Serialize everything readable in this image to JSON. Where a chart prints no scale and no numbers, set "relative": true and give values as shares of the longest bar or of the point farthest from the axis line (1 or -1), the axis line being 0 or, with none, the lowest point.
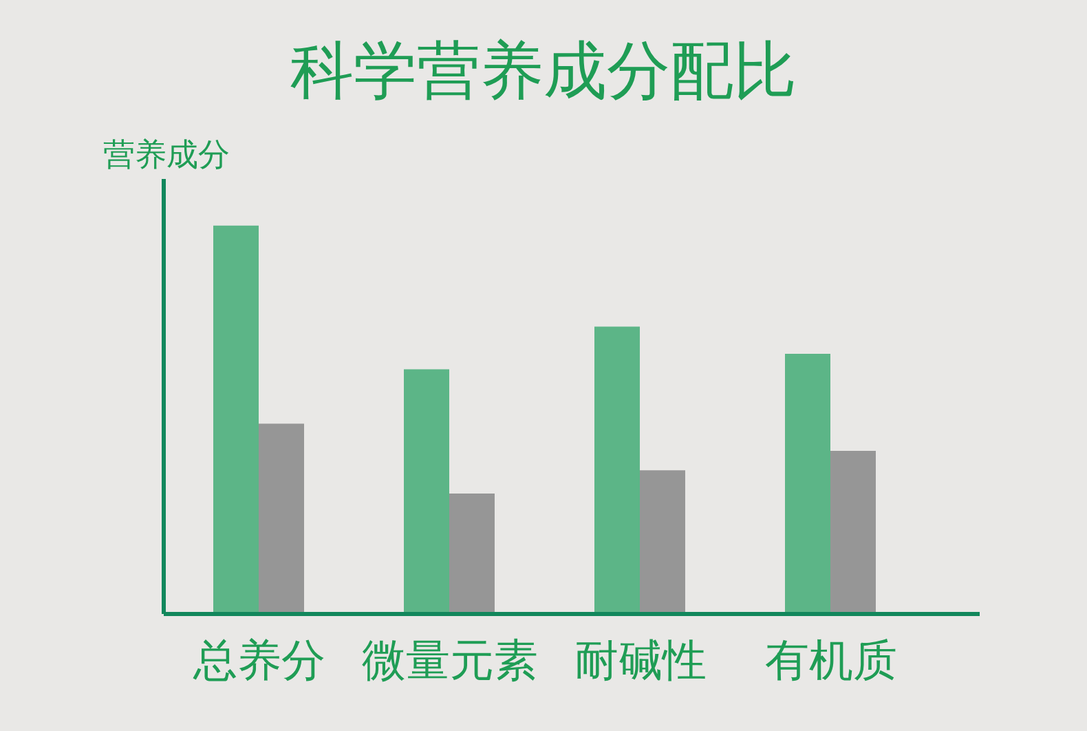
{
  "chart_data": {
    "type": "bar",
    "title": "科学营养成分配比",
    "ylabel": "营养成分",
    "categories": [
      "总养分",
      "微量元素",
      "耐碱性",
      "有机质"
    ],
    "series": [
      {
        "color": "#5cb587",
        "values": [
          1,
          0.63,
          0.74,
          0.67
        ]
      },
      {
        "color": "#969696",
        "values": [
          0.49,
          0.31,
          0.37,
          0.42
        ]
      }
    ],
    "relative": true
  }
}
